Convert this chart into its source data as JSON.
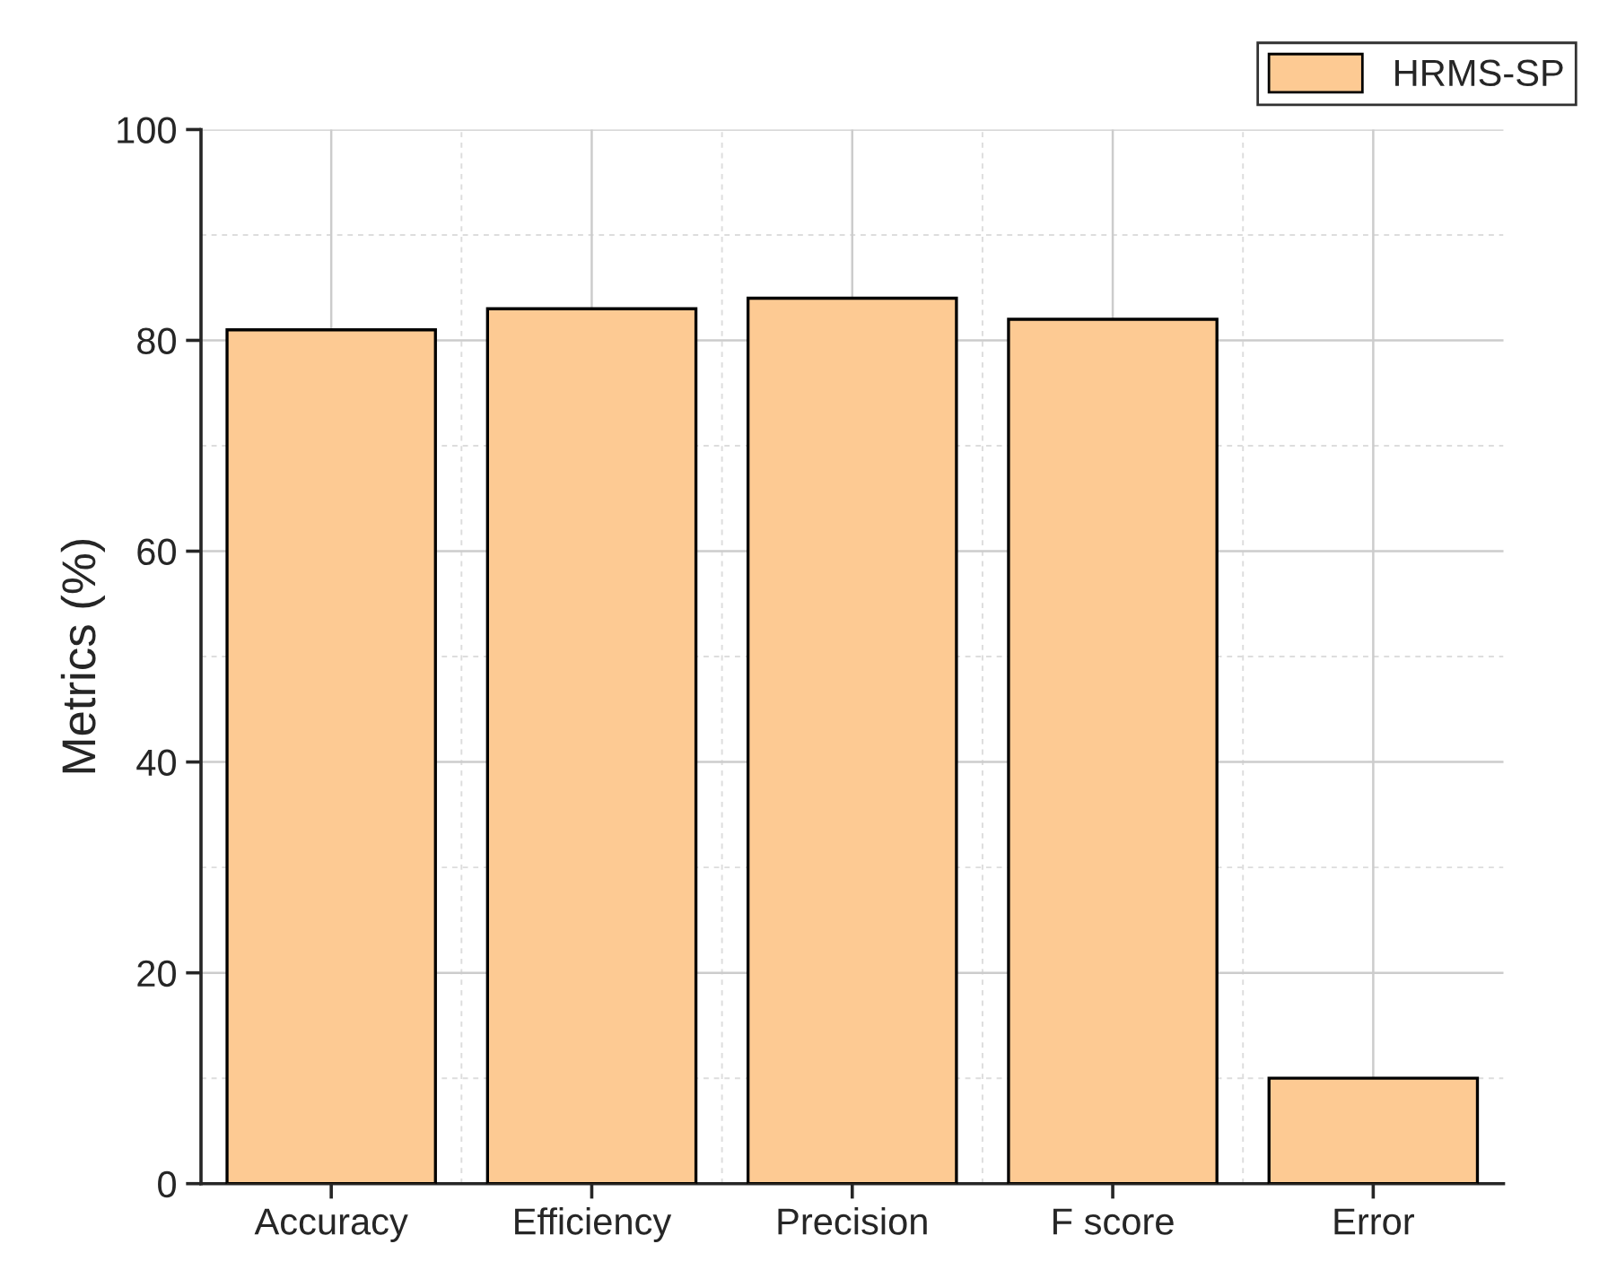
{
  "chart_data": {
    "type": "bar",
    "ylabel": "Metrics (%)",
    "categories": [
      "Accuracy",
      "Efficiency",
      "Precision",
      "F score",
      "Error"
    ],
    "series": [
      {
        "name": "HRMS-SP",
        "color": "#fdca93",
        "values": [
          81,
          83,
          84,
          82,
          10
        ]
      }
    ],
    "ylim": [
      0,
      100
    ],
    "yticks": [
      0,
      20,
      40,
      60,
      80,
      100
    ],
    "grid": true,
    "legend": "top right"
  }
}
